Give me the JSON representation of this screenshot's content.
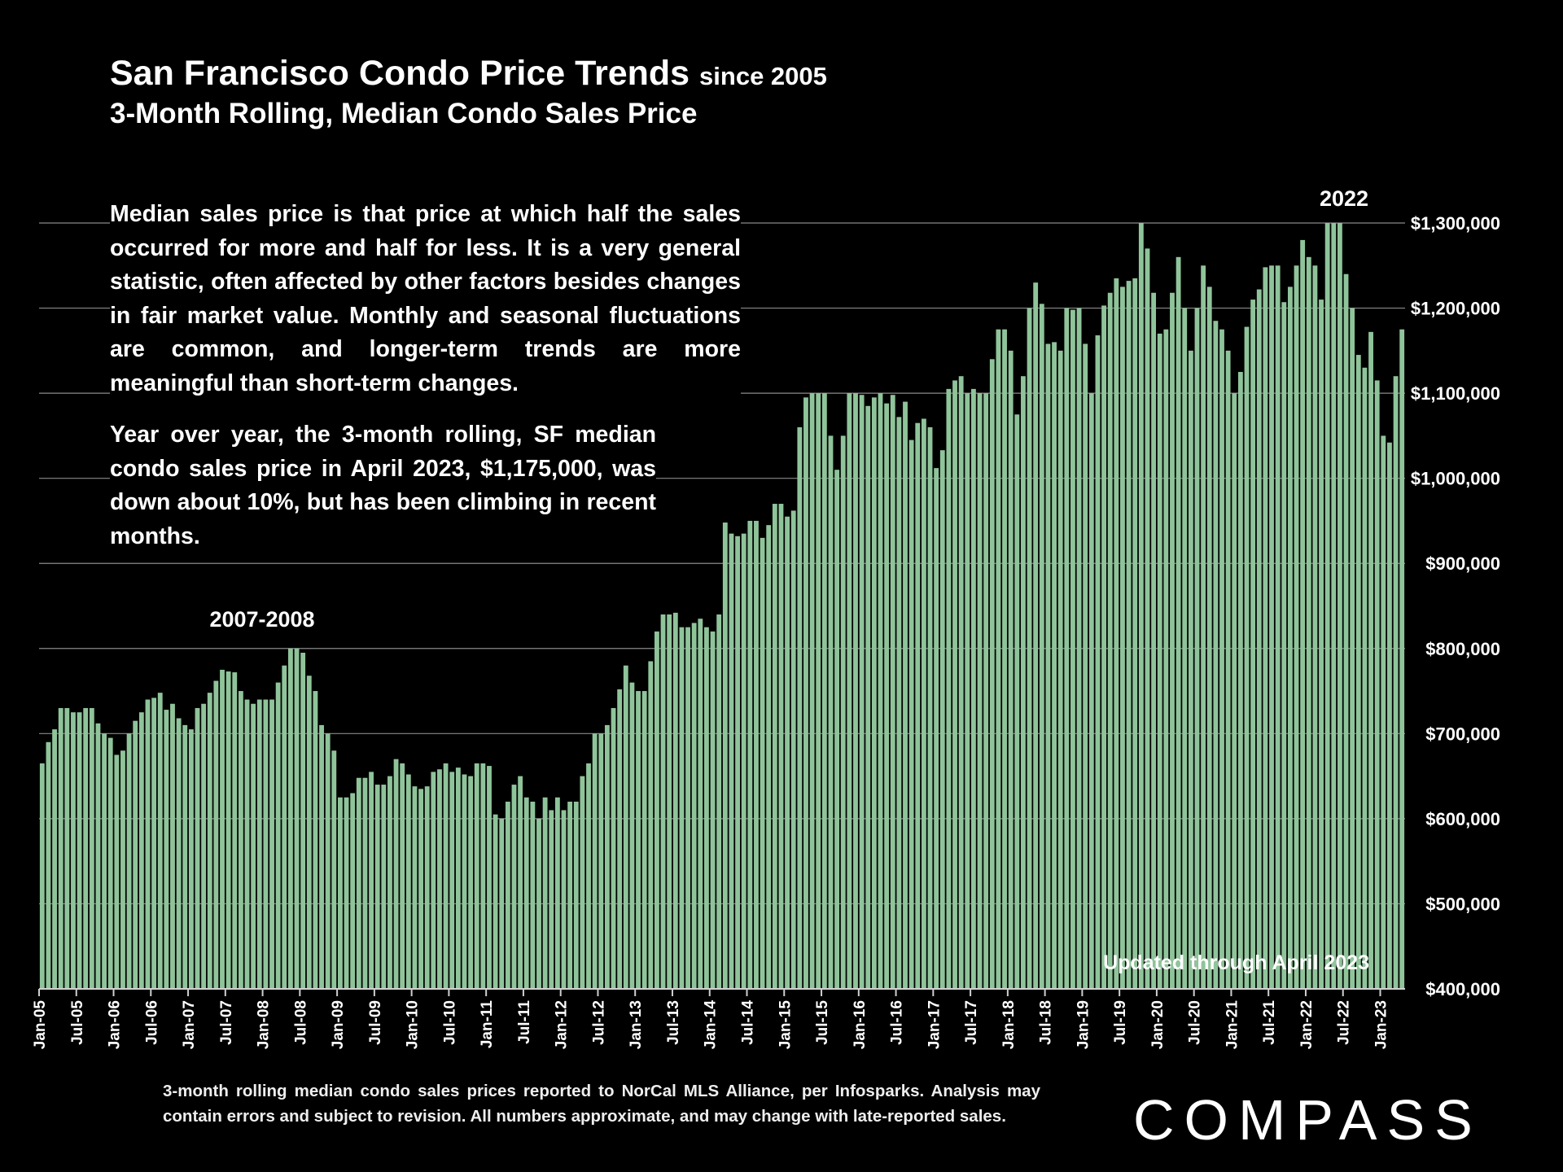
{
  "header": {
    "title": "San Francisco Condo Price Trends",
    "title_suffix": "since 2005",
    "subtitle": "3-Month Rolling, Median Condo Sales Price"
  },
  "notes": {
    "paragraph1": "Median sales price is that price at which half the sales occurred for more and half for less. It is a very general statistic, often affected by other factors besides changes in fair market value. Monthly and seasonal fluctuations are common, and longer-term trends are more meaningful than short-term changes.",
    "paragraph2": "Year over year, the 3-month rolling, SF median condo sales price in April 2023, $1,175,000, was down about 10%, but has been climbing in recent months."
  },
  "footer": {
    "footnote": "3-month rolling median condo sales prices reported to NorCal MLS Alliance, per Infosparks. Analysis may contain errors and subject to revision. All numbers approximate, and may change with late-reported sales.",
    "logo": "COMPASS"
  },
  "colors": {
    "bar": "#8fc49a",
    "background": "#000000",
    "text": "#ffffff",
    "grid": "#8a8a8a"
  },
  "chart_data": {
    "type": "bar",
    "title": "San Francisco Condo Price Trends since 2005",
    "subtitle": "3-Month Rolling, Median Condo Sales Price",
    "xlabel": "",
    "ylabel": "",
    "ylim": [
      400000,
      1300000
    ],
    "y_ticks": [
      400000,
      500000,
      600000,
      700000,
      800000,
      900000,
      1000000,
      1100000,
      1200000,
      1300000
    ],
    "y_tick_labels": [
      "$400,000",
      "$500,000",
      "$600,000",
      "$700,000",
      "$800,000",
      "$900,000",
      "$1,000,000",
      "$1,100,000",
      "$1,200,000",
      "$1,300,000"
    ],
    "y_axis_side": "right",
    "grid": true,
    "x_tick_labels": [
      "Jan-05",
      "Jul-05",
      "Jan-06",
      "Jul-06",
      "Jan-07",
      "Jul-07",
      "Jan-08",
      "Jul-08",
      "Jan-09",
      "Jul-09",
      "Jan-10",
      "Jul-10",
      "Jan-11",
      "Jul-11",
      "Jan-12",
      "Jul-12",
      "Jan-13",
      "Jul-13",
      "Jan-14",
      "Jul-14",
      "Jan-15",
      "Jul-15",
      "Jan-16",
      "Jul-16",
      "Jan-17",
      "Jul-17",
      "Jan-18",
      "Jul-18",
      "Jan-19",
      "Jul-19",
      "Jan-20",
      "Jul-20",
      "Jan-21",
      "Jul-21",
      "Jan-22",
      "Jul-22",
      "Jan-23"
    ],
    "annotations": [
      {
        "text": "2007-2008",
        "month_index": 40
      },
      {
        "text": "2022",
        "month_index": 209
      },
      {
        "text": "Updated through April 2023",
        "position": "bottom-right"
      }
    ],
    "start_month": "Jan-05",
    "end_month": "Apr-23",
    "series": [
      {
        "name": "3-Month Rolling Median Condo Sales Price",
        "values": [
          665000,
          690000,
          705000,
          730000,
          730000,
          725000,
          725000,
          730000,
          730000,
          712000,
          700000,
          695000,
          675000,
          680000,
          700000,
          715000,
          725000,
          740000,
          742000,
          748000,
          728000,
          735000,
          718000,
          710000,
          705000,
          730000,
          735000,
          748000,
          762000,
          775000,
          773000,
          772000,
          750000,
          740000,
          735000,
          740000,
          740000,
          740000,
          760000,
          780000,
          800000,
          800000,
          795000,
          768000,
          750000,
          710000,
          700000,
          680000,
          625000,
          625000,
          630000,
          648000,
          648000,
          655000,
          640000,
          640000,
          650000,
          670000,
          665000,
          652000,
          638000,
          635000,
          638000,
          655000,
          658000,
          665000,
          655000,
          660000,
          652000,
          650000,
          665000,
          665000,
          662000,
          605000,
          600000,
          620000,
          640000,
          650000,
          625000,
          620000,
          600000,
          625000,
          610000,
          625000,
          610000,
          620000,
          620000,
          650000,
          665000,
          700000,
          700000,
          710000,
          730000,
          752000,
          780000,
          760000,
          750000,
          750000,
          785000,
          820000,
          840000,
          840000,
          842000,
          825000,
          825000,
          830000,
          835000,
          825000,
          820000,
          840000,
          948000,
          935000,
          932000,
          935000,
          950000,
          950000,
          930000,
          945000,
          970000,
          970000,
          955000,
          962000,
          1060000,
          1095000,
          1100000,
          1100000,
          1100000,
          1050000,
          1010000,
          1050000,
          1100000,
          1100000,
          1098000,
          1085000,
          1095000,
          1100000,
          1088000,
          1098000,
          1072000,
          1090000,
          1045000,
          1065000,
          1070000,
          1060000,
          1012000,
          1033000,
          1105000,
          1115000,
          1120000,
          1100000,
          1105000,
          1100000,
          1100000,
          1140000,
          1175000,
          1175000,
          1150000,
          1075000,
          1120000,
          1200000,
          1230000,
          1205000,
          1158000,
          1160000,
          1150000,
          1200000,
          1198000,
          1200000,
          1158000,
          1100000,
          1168000,
          1203000,
          1218000,
          1235000,
          1225000,
          1232000,
          1235000,
          1300000,
          1270000,
          1218000,
          1170000,
          1175000,
          1218000,
          1260000,
          1200000,
          1150000,
          1200000,
          1250000,
          1225000,
          1185000,
          1175000,
          1150000,
          1100000,
          1125000,
          1178000,
          1210000,
          1222000,
          1248000,
          1250000,
          1250000,
          1207000,
          1225000,
          1250000,
          1280000,
          1260000,
          1250000,
          1210000,
          1300000,
          1300000,
          1300000,
          1240000,
          1200000,
          1145000,
          1130000,
          1172000,
          1115000,
          1050000,
          1042000,
          1120000,
          1175000
        ]
      }
    ]
  }
}
